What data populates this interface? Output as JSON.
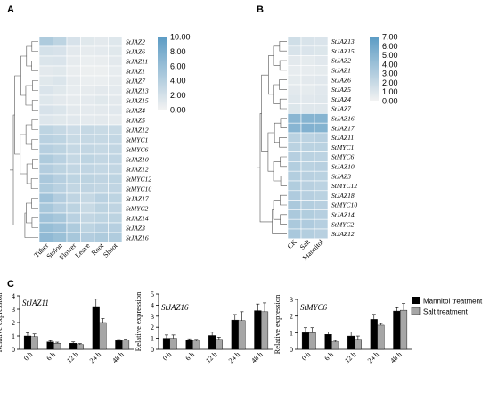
{
  "panel_labels": {
    "a": "A",
    "b": "B",
    "c": "C"
  },
  "colors": {
    "high": "#5b9bc4",
    "low": "#f2f2f2",
    "bar_black": "#000000",
    "bar_gray": "#a6a6a6"
  },
  "chart_data": [
    {
      "type": "heatmap",
      "panel": "A",
      "columns": [
        "Tuber",
        "Stolon",
        "Flower",
        "Leave",
        "Root",
        "Shoot"
      ],
      "rows": [
        "StJAZ2",
        "StJAZ6",
        "StJAZ11",
        "StJAZ1",
        "StJAZ7",
        "StJAZ13",
        "StJAZ15",
        "StJAZ4",
        "StJAZ5",
        "StJAZ12",
        "StMYC1",
        "StMYC6",
        "StJAZ10",
        "StJAZ12",
        "StMYC12",
        "StMYC10",
        "StJAZ17",
        "StMYC2",
        "StJAZ14",
        "StJAZ3",
        "StJAZ16"
      ],
      "values": [
        [
          4.5,
          3.5,
          1.8,
          1.2,
          1.0,
          1.3
        ],
        [
          2.0,
          1.8,
          1.0,
          0.8,
          0.9,
          1.2
        ],
        [
          1.5,
          1.6,
          0.8,
          0.5,
          0.6,
          1.0
        ],
        [
          1.0,
          1.2,
          0.6,
          0.4,
          0.4,
          0.7
        ],
        [
          1.2,
          1.5,
          0.8,
          0.5,
          0.5,
          0.8
        ],
        [
          1.6,
          1.2,
          0.7,
          0.8,
          1.0,
          0.9
        ],
        [
          1.3,
          1.0,
          0.8,
          0.9,
          1.2,
          1.0
        ],
        [
          1.8,
          1.5,
          1.0,
          0.9,
          1.0,
          1.1
        ],
        [
          1.4,
          1.2,
          1.1,
          0.9,
          1.0,
          0.8
        ],
        [
          3.5,
          3.0,
          2.5,
          3.0,
          2.8,
          2.8
        ],
        [
          3.8,
          3.5,
          2.8,
          3.0,
          3.0,
          3.1
        ],
        [
          4.0,
          3.6,
          3.0,
          3.2,
          3.0,
          3.2
        ],
        [
          4.5,
          3.8,
          3.0,
          3.5,
          3.2,
          3.3
        ],
        [
          4.2,
          3.6,
          3.2,
          3.3,
          3.1,
          3.2
        ],
        [
          4.8,
          4.0,
          3.5,
          3.6,
          3.4,
          3.5
        ],
        [
          4.5,
          3.8,
          3.2,
          3.4,
          3.2,
          3.3
        ],
        [
          5.5,
          4.2,
          3.4,
          3.0,
          3.8,
          3.5
        ],
        [
          5.0,
          4.0,
          3.6,
          2.8,
          3.6,
          3.4
        ],
        [
          5.5,
          5.0,
          3.8,
          3.2,
          3.5,
          3.6
        ],
        [
          6.0,
          5.5,
          4.5,
          3.5,
          4.0,
          4.0
        ],
        [
          6.5,
          5.8,
          5.0,
          4.2,
          4.5,
          4.4
        ]
      ],
      "colorbar": {
        "min": 0,
        "max": 10,
        "ticks": [
          "10.00",
          "8.00",
          "6.00",
          "4.00",
          "2.00",
          "0.00"
        ]
      }
    },
    {
      "type": "heatmap",
      "panel": "B",
      "columns": [
        "CK",
        "Salt",
        "Mannitol"
      ],
      "rows": [
        "StJAZ13",
        "StJAZ15",
        "StJAZ2",
        "StJAZ1",
        "StJAZ6",
        "StJAZ5",
        "StJAZ4",
        "StJAZ7",
        "StJAZ16",
        "StJAZ17",
        "StJAZ11",
        "StMYC1",
        "StMYC6",
        "StJAZ10",
        "StJAZ3",
        "StMYC12",
        "StJAZ18",
        "StMYC10",
        "StJAZ14",
        "StMYC2",
        "StJAZ12"
      ],
      "values": [
        [
          1.6,
          1.2,
          1.1
        ],
        [
          1.2,
          1.1,
          1.0
        ],
        [
          0.7,
          0.6,
          0.8
        ],
        [
          0.5,
          0.5,
          0.6
        ],
        [
          0.6,
          0.7,
          0.8
        ],
        [
          0.7,
          0.6,
          0.8
        ],
        [
          0.9,
          0.8,
          0.9
        ],
        [
          1.0,
          0.9,
          0.9
        ],
        [
          4.8,
          5.0,
          5.0
        ],
        [
          4.9,
          5.2,
          5.1
        ],
        [
          2.6,
          2.5,
          2.7
        ],
        [
          2.6,
          2.6,
          2.6
        ],
        [
          2.8,
          2.6,
          2.5
        ],
        [
          2.9,
          2.6,
          2.7
        ],
        [
          2.9,
          2.7,
          2.6
        ],
        [
          3.0,
          2.7,
          2.5
        ],
        [
          3.1,
          2.8,
          2.6
        ],
        [
          3.3,
          2.9,
          2.7
        ],
        [
          3.3,
          3.0,
          2.8
        ],
        [
          3.3,
          3.1,
          2.8
        ],
        [
          3.4,
          2.9,
          2.7
        ]
      ],
      "colorbar": {
        "min": 0,
        "max": 7,
        "ticks": [
          "7.00",
          "6.00",
          "5.00",
          "4.00",
          "3.00",
          "2.00",
          "1.00",
          "0.00"
        ]
      }
    },
    {
      "type": "bar",
      "panel": "C",
      "gene": "StJAZ11",
      "ylabel": "Relative expression",
      "categories": [
        "0 h",
        "6 h",
        "12 h",
        "24 h",
        "48 h"
      ],
      "ylim": [
        0,
        4
      ],
      "yticks": [
        0,
        1,
        2,
        3,
        4
      ],
      "series": [
        {
          "name": "Mannitol treatment",
          "values": [
            1.0,
            0.55,
            0.45,
            3.2,
            0.65
          ],
          "errors": [
            0.25,
            0.1,
            0.1,
            0.55,
            0.08
          ]
        },
        {
          "name": "Salt treatment",
          "values": [
            0.95,
            0.45,
            0.35,
            2.0,
            0.7
          ],
          "errors": [
            0.2,
            0.08,
            0.08,
            0.3,
            0.06
          ]
        }
      ]
    },
    {
      "type": "bar",
      "panel": "C",
      "gene": "StJAZ16",
      "ylabel": "Relative expression",
      "categories": [
        "0 h",
        "6 h",
        "12 h",
        "24 h",
        "48 h"
      ],
      "ylim": [
        0,
        5
      ],
      "yticks": [
        0,
        1,
        2,
        3,
        4,
        5
      ],
      "series": [
        {
          "name": "Mannitol treatment",
          "values": [
            1.0,
            0.85,
            1.25,
            2.65,
            3.5
          ],
          "errors": [
            0.3,
            0.1,
            0.3,
            0.5,
            0.6
          ]
        },
        {
          "name": "Salt treatment",
          "values": [
            1.0,
            0.75,
            0.9,
            2.6,
            3.4
          ],
          "errors": [
            0.3,
            0.15,
            0.2,
            0.8,
            0.8
          ]
        }
      ]
    },
    {
      "type": "bar",
      "panel": "C",
      "gene": "StMYC6",
      "ylabel": "Relative expression",
      "categories": [
        "0 h",
        "6 h",
        "12 h",
        "24 h",
        "48 h"
      ],
      "ylim": [
        0,
        3
      ],
      "yticks": [
        0,
        1,
        2,
        3
      ],
      "series": [
        {
          "name": "Mannitol treatment",
          "values": [
            1.0,
            0.9,
            0.8,
            1.8,
            2.3
          ],
          "errors": [
            0.3,
            0.15,
            0.25,
            0.3,
            0.2
          ]
        },
        {
          "name": "Salt treatment",
          "values": [
            1.0,
            0.45,
            0.6,
            1.45,
            2.35
          ],
          "errors": [
            0.3,
            0.08,
            0.2,
            0.1,
            0.4
          ]
        }
      ]
    }
  ]
}
